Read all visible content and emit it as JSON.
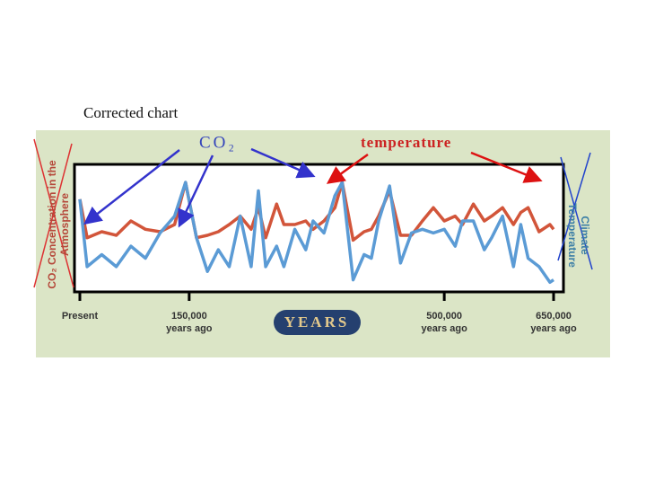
{
  "slide_title": "Corrected chart",
  "chart_data": {
    "type": "line",
    "x_label": "YEARS",
    "y_label": "CO₂ Concentration in the Atmosphere",
    "y2_label": "Climate Temperature",
    "annotations": [
      "CO₂",
      "temperature"
    ],
    "x": [
      0,
      10000,
      30000,
      50000,
      70000,
      90000,
      110000,
      130000,
      145000,
      160000,
      175000,
      190000,
      205000,
      220000,
      235000,
      245000,
      255000,
      270000,
      280000,
      295000,
      310000,
      320000,
      335000,
      350000,
      360000,
      375000,
      390000,
      400000,
      410000,
      425000,
      440000,
      455000,
      470000,
      485000,
      500000,
      515000,
      525000,
      540000,
      555000,
      565000,
      580000,
      595000,
      605000,
      615000,
      630000,
      645000,
      650000
    ],
    "series": [
      {
        "name": "CO₂",
        "color": "#5b9bd5",
        "values": [
          74,
          18,
          28,
          18,
          35,
          25,
          46,
          60,
          88,
          42,
          14,
          32,
          18,
          60,
          18,
          81,
          18,
          35,
          18,
          49,
          32,
          56,
          46,
          77,
          88,
          7,
          28,
          25,
          56,
          85,
          21,
          46,
          49,
          46,
          49,
          35,
          56,
          56,
          32,
          42,
          60,
          18,
          53,
          25,
          18,
          5,
          7
        ]
      },
      {
        "name": "temperature",
        "color": "#d2553a",
        "values": [
          74,
          42,
          47,
          44,
          56,
          49,
          47,
          53,
          88,
          42,
          44,
          47,
          53,
          60,
          49,
          67,
          42,
          70,
          53,
          53,
          56,
          49,
          56,
          67,
          88,
          40,
          47,
          49,
          60,
          81,
          44,
          44,
          56,
          67,
          56,
          60,
          53,
          70,
          56,
          60,
          67,
          53,
          63,
          67,
          47,
          53,
          49
        ]
      }
    ],
    "xlim": [
      0,
      650000
    ],
    "ylim": [
      0,
      100
    ],
    "xticks": [
      {
        "value": 0,
        "label": "Present"
      },
      {
        "value": 150000,
        "label": "150,000 years ago"
      },
      {
        "value": 500000,
        "label": "500,000 years ago"
      },
      {
        "value": 650000,
        "label": "650,000 years ago"
      }
    ]
  }
}
